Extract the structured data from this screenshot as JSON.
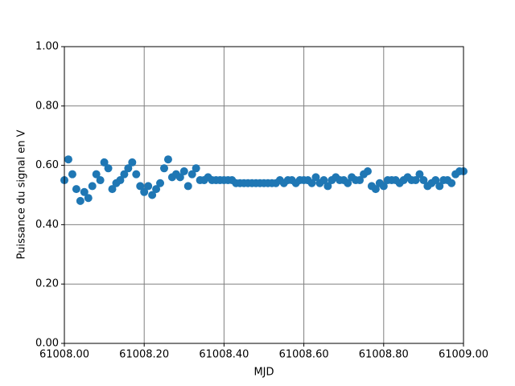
{
  "chart_data": {
    "type": "scatter",
    "xlabel": "MJD",
    "ylabel": "Puissance du signal en V",
    "color": "#1f77b4",
    "grid": true,
    "xlim": [
      61008.0,
      61009.0
    ],
    "xticks": [
      {
        "value": 61008.0,
        "label": "61008.00"
      },
      {
        "value": 61008.2,
        "label": "61008.20"
      },
      {
        "value": 61008.4,
        "label": "61008.40"
      },
      {
        "value": 61008.6,
        "label": "61008.60"
      },
      {
        "value": 61008.8,
        "label": "61008.80"
      },
      {
        "value": 61009.0,
        "label": "61009.00"
      }
    ],
    "ylim": [
      0,
      1
    ],
    "yticks": [
      {
        "value": 0,
        "label": "0.00"
      },
      {
        "value": 0.2,
        "label": "0.20"
      },
      {
        "value": 0.4,
        "label": "0.40"
      },
      {
        "value": 0.6,
        "label": "0.60"
      },
      {
        "value": 0.8,
        "label": "0.80"
      },
      {
        "value": 1,
        "label": "1.00"
      }
    ],
    "x": [
      61008.0,
      61008.01,
      61008.02,
      61008.03,
      61008.04,
      61008.05,
      61008.06,
      61008.07,
      61008.08,
      61008.09,
      61008.1,
      61008.11,
      61008.12,
      61008.13,
      61008.14,
      61008.15,
      61008.16,
      61008.17,
      61008.18,
      61008.19,
      61008.2,
      61008.21,
      61008.22,
      61008.23,
      61008.24,
      61008.25,
      61008.26,
      61008.27,
      61008.28,
      61008.29,
      61008.3,
      61008.31,
      61008.32,
      61008.33,
      61008.34,
      61008.35,
      61008.36,
      61008.37,
      61008.38,
      61008.39,
      61008.4,
      61008.41,
      61008.42,
      61008.43,
      61008.44,
      61008.45,
      61008.46,
      61008.47,
      61008.48,
      61008.49,
      61008.5,
      61008.51,
      61008.52,
      61008.53,
      61008.54,
      61008.55,
      61008.56,
      61008.57,
      61008.58,
      61008.59,
      61008.6,
      61008.61,
      61008.62,
      61008.63,
      61008.64,
      61008.65,
      61008.66,
      61008.67,
      61008.68,
      61008.69,
      61008.7,
      61008.71,
      61008.72,
      61008.73,
      61008.74,
      61008.75,
      61008.76,
      61008.77,
      61008.78,
      61008.79,
      61008.8,
      61008.81,
      61008.82,
      61008.83,
      61008.84,
      61008.85,
      61008.86,
      61008.87,
      61008.88,
      61008.89,
      61008.9,
      61008.91,
      61008.92,
      61008.93,
      61008.94,
      61008.95,
      61008.96,
      61008.97,
      61008.98,
      61008.99,
      61009.0
    ],
    "values": [
      0.55,
      0.62,
      0.57,
      0.52,
      0.48,
      0.51,
      0.49,
      0.53,
      0.57,
      0.55,
      0.61,
      0.59,
      0.52,
      0.54,
      0.55,
      0.57,
      0.59,
      0.61,
      0.57,
      0.53,
      0.51,
      0.53,
      0.5,
      0.52,
      0.54,
      0.59,
      0.62,
      0.56,
      0.57,
      0.56,
      0.58,
      0.53,
      0.57,
      0.59,
      0.55,
      0.55,
      0.56,
      0.55,
      0.55,
      0.55,
      0.55,
      0.55,
      0.55,
      0.54,
      0.54,
      0.54,
      0.54,
      0.54,
      0.54,
      0.54,
      0.54,
      0.54,
      0.54,
      0.54,
      0.55,
      0.54,
      0.55,
      0.55,
      0.54,
      0.55,
      0.55,
      0.55,
      0.54,
      0.56,
      0.54,
      0.55,
      0.53,
      0.55,
      0.56,
      0.55,
      0.55,
      0.54,
      0.56,
      0.55,
      0.55,
      0.57,
      0.58,
      0.53,
      0.52,
      0.54,
      0.53,
      0.55,
      0.55,
      0.55,
      0.54,
      0.55,
      0.56,
      0.55,
      0.55,
      0.57,
      0.55,
      0.53,
      0.54,
      0.55,
      0.53,
      0.55,
      0.55,
      0.54,
      0.57,
      0.58,
      0.58
    ]
  }
}
